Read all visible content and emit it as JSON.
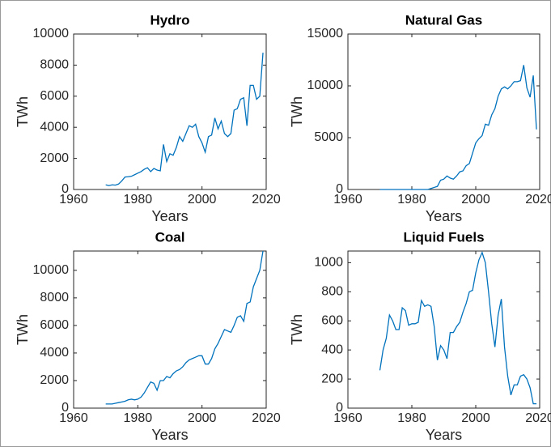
{
  "chart_data": [
    {
      "type": "line",
      "title": "Hydro",
      "x_label": "Years",
      "y_label": "TWh",
      "x": [
        1970,
        1971,
        1972,
        1973,
        1974,
        1975,
        1976,
        1977,
        1978,
        1979,
        1980,
        1981,
        1982,
        1983,
        1984,
        1985,
        1986,
        1987,
        1988,
        1989,
        1990,
        1991,
        1992,
        1993,
        1994,
        1995,
        1996,
        1997,
        1998,
        1999,
        2000,
        2001,
        2002,
        2003,
        2004,
        2005,
        2006,
        2007,
        2008,
        2009,
        2010,
        2011,
        2012,
        2013,
        2014,
        2015,
        2016,
        2017,
        2018,
        2019
      ],
      "values": [
        300,
        250,
        300,
        280,
        350,
        550,
        800,
        820,
        850,
        950,
        1050,
        1150,
        1300,
        1400,
        1150,
        1350,
        1250,
        1200,
        2900,
        1800,
        2300,
        2200,
        2700,
        3400,
        3100,
        3600,
        4100,
        4000,
        4200,
        3400,
        3000,
        2400,
        3400,
        3500,
        4600,
        3900,
        4400,
        3600,
        3400,
        3600,
        5100,
        5200,
        5800,
        5900,
        4100,
        6700,
        6700,
        5800,
        6000,
        8800
      ],
      "color": "#0072bd",
      "xlim": [
        1960,
        2020
      ],
      "xticks": [
        1960,
        1980,
        2000,
        2020
      ],
      "ylim": [
        0,
        10000
      ],
      "yticks": [
        0,
        2000,
        4000,
        6000,
        8000,
        10000
      ]
    },
    {
      "type": "line",
      "title": "Natural Gas",
      "x_label": "Years",
      "y_label": "TWh",
      "x": [
        1970,
        1971,
        1972,
        1973,
        1974,
        1975,
        1976,
        1977,
        1978,
        1979,
        1980,
        1981,
        1982,
        1983,
        1984,
        1985,
        1986,
        1987,
        1988,
        1989,
        1990,
        1991,
        1992,
        1993,
        1994,
        1995,
        1996,
        1997,
        1998,
        1999,
        2000,
        2001,
        2002,
        2003,
        2004,
        2005,
        2006,
        2007,
        2008,
        2009,
        2010,
        2011,
        2012,
        2013,
        2014,
        2015,
        2016,
        2017,
        2018,
        2019
      ],
      "values": [
        0,
        0,
        0,
        0,
        0,
        0,
        0,
        0,
        0,
        0,
        0,
        0,
        0,
        0,
        0,
        0,
        100,
        200,
        300,
        900,
        1000,
        1300,
        1100,
        1000,
        1300,
        1700,
        1800,
        2300,
        2500,
        3500,
        4500,
        4900,
        5200,
        6300,
        6200,
        7200,
        7800,
        9000,
        9700,
        9900,
        9700,
        10000,
        10400,
        10400,
        10500,
        12000,
        9800,
        8900,
        11000,
        5800
      ],
      "color": "#0072bd",
      "xlim": [
        1960,
        2020
      ],
      "xticks": [
        1960,
        1980,
        2000,
        2020
      ],
      "ylim": [
        0,
        15000
      ],
      "yticks": [
        0,
        5000,
        10000,
        15000
      ]
    },
    {
      "type": "line",
      "title": "Coal",
      "x_label": "Years",
      "y_label": "TWh",
      "x": [
        1970,
        1971,
        1972,
        1973,
        1974,
        1975,
        1976,
        1977,
        1978,
        1979,
        1980,
        1981,
        1982,
        1983,
        1984,
        1985,
        1986,
        1987,
        1988,
        1989,
        1990,
        1991,
        1992,
        1993,
        1994,
        1995,
        1996,
        1997,
        1998,
        1999,
        2000,
        2001,
        2002,
        2003,
        2004,
        2005,
        2006,
        2007,
        2008,
        2009,
        2010,
        2011,
        2012,
        2013,
        2014,
        2015,
        2016,
        2017,
        2018,
        2019
      ],
      "values": [
        300,
        300,
        300,
        350,
        400,
        450,
        500,
        600,
        650,
        600,
        650,
        800,
        1100,
        1500,
        1900,
        1800,
        1300,
        2000,
        2000,
        2300,
        2200,
        2500,
        2700,
        2800,
        3000,
        3300,
        3500,
        3600,
        3700,
        3800,
        3800,
        3200,
        3200,
        3600,
        4300,
        4700,
        5200,
        5700,
        5600,
        5500,
        6000,
        6600,
        6700,
        6300,
        7600,
        7700,
        8800,
        9400,
        10000,
        11400
      ],
      "color": "#0072bd",
      "xlim": [
        1960,
        2020
      ],
      "xticks": [
        1960,
        1980,
        2000,
        2020
      ],
      "ylim": [
        0,
        11400
      ],
      "yticks": [
        0,
        2000,
        4000,
        6000,
        8000,
        10000
      ]
    },
    {
      "type": "line",
      "title": "Liquid Fuels",
      "x_label": "Years",
      "y_label": "TWh",
      "x": [
        1970,
        1971,
        1972,
        1973,
        1974,
        1975,
        1976,
        1977,
        1978,
        1979,
        1980,
        1981,
        1982,
        1983,
        1984,
        1985,
        1986,
        1987,
        1988,
        1989,
        1990,
        1991,
        1992,
        1993,
        1994,
        1995,
        1996,
        1997,
        1998,
        1999,
        2000,
        2001,
        2002,
        2003,
        2004,
        2005,
        2006,
        2007,
        2008,
        2009,
        2010,
        2011,
        2012,
        2013,
        2014,
        2015,
        2016,
        2017,
        2018,
        2019
      ],
      "values": [
        260,
        400,
        480,
        640,
        600,
        540,
        540,
        690,
        670,
        570,
        580,
        580,
        590,
        740,
        700,
        710,
        700,
        560,
        330,
        430,
        400,
        340,
        520,
        520,
        560,
        590,
        660,
        720,
        800,
        810,
        930,
        1020,
        1070,
        1000,
        800,
        580,
        420,
        640,
        750,
        420,
        220,
        90,
        160,
        160,
        220,
        230,
        200,
        140,
        30,
        30
      ],
      "color": "#0072bd",
      "xlim": [
        1960,
        2020
      ],
      "xticks": [
        1960,
        1980,
        2000,
        2020
      ],
      "ylim": [
        0,
        1080
      ],
      "yticks": [
        0,
        200,
        400,
        600,
        800,
        1000
      ]
    }
  ]
}
